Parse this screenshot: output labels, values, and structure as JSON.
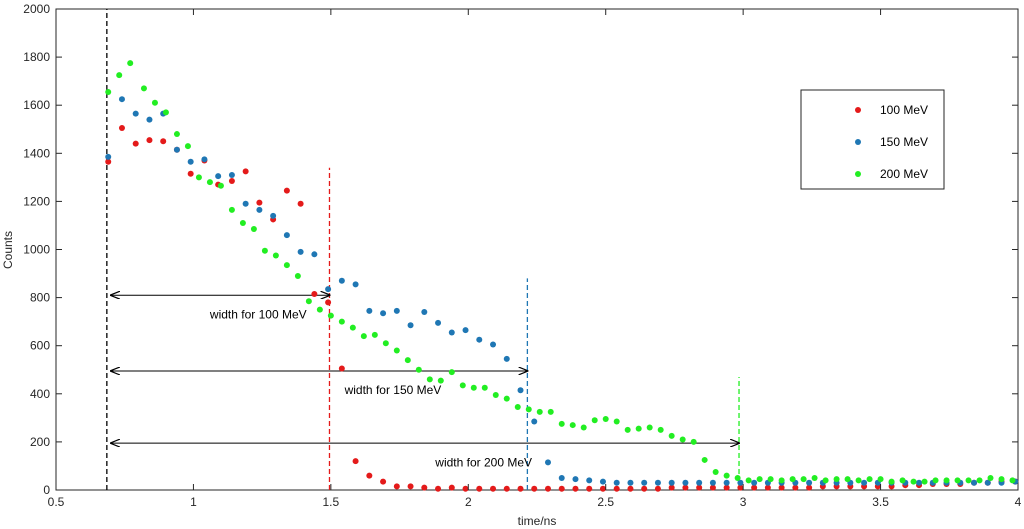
{
  "chart_data": {
    "type": "scatter",
    "title": "",
    "xlabel": "time/ns",
    "ylabel": "Counts",
    "xlim": [
      0.5,
      4
    ],
    "ylim": [
      0,
      2000
    ],
    "xticks": [
      0.5,
      1,
      1.5,
      2,
      2.5,
      3,
      3.5,
      4
    ],
    "yticks": [
      0,
      200,
      400,
      600,
      800,
      1000,
      1200,
      1400,
      1600,
      1800,
      2000
    ],
    "xtick_labels": [
      "0.5",
      "1",
      "1.5",
      "2",
      "2.5",
      "3",
      "3.5",
      "4"
    ],
    "ytick_labels": [
      "0",
      "200",
      "400",
      "600",
      "800",
      "1000",
      "1200",
      "1400",
      "1600",
      "1800",
      "2000"
    ],
    "grid": false,
    "legend_position": "top-right",
    "series": [
      {
        "name": "100  MeV",
        "color": "#e41a1a",
        "x": [
          0.69,
          0.74,
          0.79,
          0.84,
          0.89,
          0.94,
          0.99,
          1.04,
          1.09,
          1.14,
          1.19,
          1.24,
          1.29,
          1.34,
          1.39,
          1.44,
          1.49,
          1.54,
          1.59,
          1.64,
          1.69,
          1.74,
          1.79,
          1.84,
          1.89,
          1.94,
          1.99,
          2.04,
          2.09,
          2.14,
          2.19,
          2.24,
          2.29,
          2.34,
          2.39,
          2.44,
          2.49,
          2.54,
          2.59,
          2.64,
          2.69,
          2.74,
          2.79,
          2.84,
          2.89,
          2.94,
          2.99,
          3.04,
          3.09,
          3.14,
          3.19,
          3.24,
          3.29,
          3.34,
          3.39,
          3.44,
          3.49,
          3.54,
          3.59,
          3.64,
          3.69,
          3.74,
          3.79,
          3.84,
          3.89,
          3.94,
          3.99
        ],
        "y": [
          1365,
          1505,
          1440,
          1455,
          1450,
          1415,
          1315,
          1370,
          1270,
          1285,
          1325,
          1195,
          1125,
          1245,
          1190,
          815,
          780,
          505,
          120,
          60,
          35,
          15,
          15,
          10,
          5,
          10,
          5,
          5,
          5,
          5,
          5,
          5,
          5,
          5,
          5,
          5,
          5,
          5,
          5,
          5,
          5,
          10,
          10,
          10,
          10,
          10,
          10,
          10,
          10,
          10,
          10,
          10,
          15,
          15,
          15,
          15,
          15,
          15,
          20,
          20,
          25,
          25,
          25,
          30,
          30,
          35,
          35
        ]
      },
      {
        "name": "150  MeV",
        "color": "#1f77b4",
        "x": [
          0.69,
          0.74,
          0.79,
          0.84,
          0.89,
          0.94,
          0.99,
          1.04,
          1.09,
          1.14,
          1.19,
          1.24,
          1.29,
          1.34,
          1.39,
          1.44,
          1.49,
          1.54,
          1.59,
          1.64,
          1.69,
          1.74,
          1.79,
          1.84,
          1.89,
          1.94,
          1.99,
          2.04,
          2.09,
          2.14,
          2.19,
          2.24,
          2.29,
          2.34,
          2.39,
          2.44,
          2.49,
          2.54,
          2.59,
          2.64,
          2.69,
          2.74,
          2.79,
          2.84,
          2.89,
          2.94,
          2.99,
          3.04,
          3.09,
          3.14,
          3.19,
          3.24,
          3.29,
          3.34,
          3.39,
          3.44,
          3.49,
          3.54,
          3.59,
          3.64,
          3.69,
          3.74,
          3.79,
          3.84,
          3.89,
          3.94,
          3.99
        ],
        "y": [
          1385,
          1625,
          1565,
          1540,
          1565,
          1415,
          1365,
          1375,
          1305,
          1310,
          1190,
          1165,
          1140,
          1060,
          990,
          980,
          835,
          870,
          855,
          745,
          735,
          745,
          685,
          740,
          695,
          655,
          665,
          625,
          605,
          545,
          415,
          285,
          115,
          50,
          45,
          40,
          35,
          30,
          30,
          30,
          30,
          30,
          30,
          30,
          30,
          30,
          30,
          30,
          30,
          30,
          30,
          30,
          30,
          30,
          30,
          30,
          30,
          30,
          30,
          30,
          30,
          30,
          30,
          30,
          30,
          30,
          35
        ]
      },
      {
        "name": "200  MeV",
        "color": "#22ee22",
        "x": [
          0.69,
          0.73,
          0.77,
          0.82,
          0.86,
          0.9,
          0.94,
          0.98,
          1.02,
          1.06,
          1.1,
          1.14,
          1.18,
          1.22,
          1.26,
          1.3,
          1.34,
          1.38,
          1.42,
          1.46,
          1.5,
          1.54,
          1.58,
          1.62,
          1.66,
          1.7,
          1.74,
          1.78,
          1.82,
          1.86,
          1.9,
          1.94,
          1.98,
          2.02,
          2.06,
          2.1,
          2.14,
          2.18,
          2.22,
          2.26,
          2.3,
          2.34,
          2.38,
          2.42,
          2.46,
          2.5,
          2.54,
          2.58,
          2.62,
          2.66,
          2.7,
          2.74,
          2.78,
          2.82,
          2.86,
          2.9,
          2.94,
          2.98,
          3.02,
          3.06,
          3.1,
          3.14,
          3.18,
          3.22,
          3.26,
          3.3,
          3.34,
          3.38,
          3.42,
          3.46,
          3.5,
          3.54,
          3.58,
          3.62,
          3.66,
          3.7,
          3.74,
          3.78,
          3.82,
          3.86,
          3.9,
          3.94,
          3.98
        ],
        "y": [
          1655,
          1725,
          1775,
          1670,
          1610,
          1570,
          1480,
          1430,
          1300,
          1280,
          1265,
          1165,
          1110,
          1085,
          995,
          975,
          935,
          890,
          785,
          750,
          725,
          700,
          675,
          640,
          645,
          610,
          580,
          540,
          500,
          460,
          455,
          490,
          435,
          425,
          425,
          395,
          380,
          345,
          335,
          325,
          325,
          275,
          270,
          260,
          290,
          295,
          285,
          250,
          255,
          260,
          250,
          225,
          210,
          200,
          125,
          75,
          60,
          50,
          40,
          45,
          45,
          40,
          45,
          45,
          50,
          40,
          45,
          45,
          40,
          45,
          45,
          35,
          40,
          35,
          35,
          40,
          40,
          40,
          40,
          40,
          50,
          45,
          40
        ]
      }
    ],
    "vertical_lines": [
      {
        "x": 0.685,
        "y_top": 2000,
        "color": "#000000"
      },
      {
        "x": 1.495,
        "y_top": 1340,
        "color": "#e41a1a"
      },
      {
        "x": 2.215,
        "y_top": 880,
        "color": "#1f77b4"
      },
      {
        "x": 2.985,
        "y_top": 470,
        "color": "#22ee22"
      }
    ],
    "annotations": [
      {
        "label": "width for 100   MeV",
        "x_start": 0.7,
        "x_end": 1.495,
        "y_arrow": 810,
        "text_x": 1.06,
        "text_y": 730
      },
      {
        "label": "width for 150   MeV",
        "x_start": 0.7,
        "x_end": 2.215,
        "y_arrow": 495,
        "text_x": 1.55,
        "text_y": 415
      },
      {
        "label": "width for 200   MeV",
        "x_start": 0.7,
        "x_end": 2.985,
        "y_arrow": 195,
        "text_x": 1.88,
        "text_y": 115
      }
    ]
  }
}
